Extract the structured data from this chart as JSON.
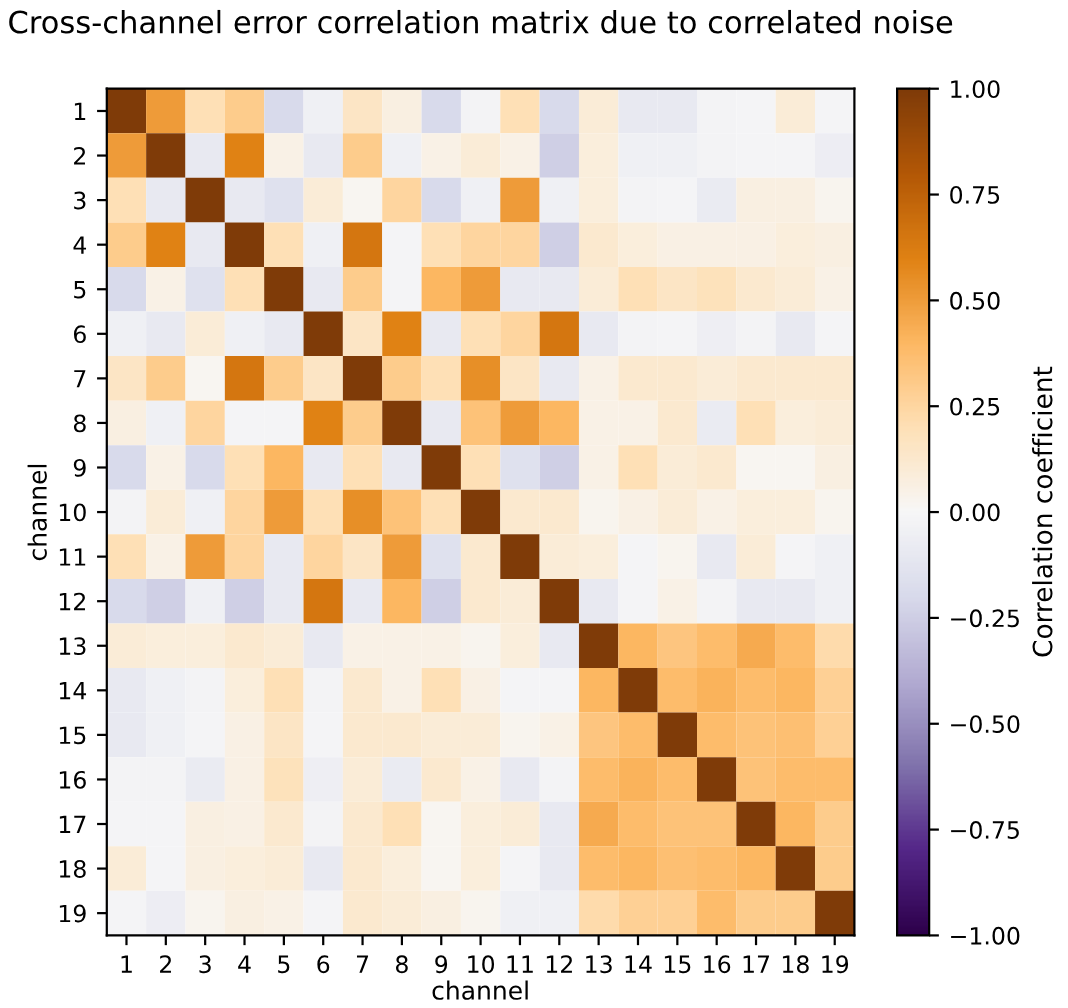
{
  "chart_data": {
    "type": "heatmap",
    "title": "Cross-channel error correlation matrix due to correlated noise",
    "xlabel": "channel",
    "ylabel": "channel",
    "clabel": "Correlation coefficient",
    "categories": [
      "1",
      "2",
      "3",
      "4",
      "5",
      "6",
      "7",
      "8",
      "9",
      "10",
      "11",
      "12",
      "13",
      "14",
      "15",
      "16",
      "17",
      "18",
      "19"
    ],
    "y_categories": [
      "1",
      "2",
      "3",
      "4",
      "5",
      "6",
      "7",
      "8",
      "9",
      "10",
      "11",
      "12",
      "13",
      "14",
      "15",
      "16",
      "17",
      "18",
      "19"
    ],
    "clim": [
      -1,
      1
    ],
    "cticks": [
      {
        "value": -1,
        "label": "−1.00"
      },
      {
        "value": -0.75,
        "label": "−0.75"
      },
      {
        "value": -0.5,
        "label": "−0.50"
      },
      {
        "value": -0.25,
        "label": "−0.25"
      },
      {
        "value": 0,
        "label": "0.00"
      },
      {
        "value": 0.25,
        "label": "0.25"
      },
      {
        "value": 0.5,
        "label": "0.50"
      },
      {
        "value": 0.75,
        "label": "0.75"
      },
      {
        "value": 1,
        "label": "1.00"
      }
    ],
    "cells": [
      [
        1,
        0.5,
        0.2,
        0.3,
        -0.2,
        -0.05,
        0.15,
        0.07,
        -0.2,
        -0.03,
        0.2,
        -0.2,
        0.1,
        -0.1,
        -0.1,
        -0.03,
        -0.02,
        0.1,
        -0.02
      ],
      [
        0.5,
        1,
        -0.1,
        0.6,
        0.05,
        -0.1,
        0.3,
        -0.05,
        0.05,
        0.1,
        0.05,
        -0.25,
        0.08,
        -0.05,
        -0.05,
        -0.03,
        -0.02,
        -0.02,
        -0.07
      ],
      [
        0.2,
        -0.1,
        1,
        -0.1,
        -0.15,
        0.1,
        0.02,
        0.25,
        -0.2,
        -0.05,
        0.5,
        -0.05,
        0.08,
        -0.03,
        -0.02,
        -0.08,
        0.07,
        0.07,
        0.03
      ],
      [
        0.3,
        0.6,
        -0.1,
        1,
        0.2,
        -0.05,
        0.65,
        -0.02,
        0.2,
        0.25,
        0.25,
        -0.25,
        0.12,
        0.08,
        0.06,
        0.06,
        0.06,
        0.08,
        0.07
      ],
      [
        -0.2,
        0.05,
        -0.15,
        0.2,
        1,
        -0.1,
        0.3,
        -0.02,
        0.4,
        0.5,
        -0.1,
        -0.1,
        0.1,
        0.2,
        0.15,
        0.18,
        0.12,
        0.1,
        0.05
      ],
      [
        -0.05,
        -0.1,
        0.1,
        -0.05,
        -0.1,
        1,
        0.15,
        0.6,
        -0.1,
        0.2,
        0.25,
        0.65,
        -0.1,
        -0.03,
        -0.02,
        -0.06,
        -0.03,
        -0.1,
        -0.02
      ],
      [
        0.15,
        0.3,
        0.02,
        0.65,
        0.3,
        0.15,
        1,
        0.3,
        0.2,
        0.55,
        0.15,
        -0.1,
        0.05,
        0.12,
        0.12,
        0.1,
        0.12,
        0.12,
        0.12
      ],
      [
        0.07,
        -0.05,
        0.25,
        -0.02,
        -0.02,
        0.6,
        0.3,
        1,
        -0.1,
        0.35,
        0.5,
        0.4,
        0.05,
        0.05,
        0.12,
        -0.08,
        0.2,
        0.08,
        0.1
      ],
      [
        -0.2,
        0.05,
        -0.2,
        0.2,
        0.4,
        -0.1,
        0.2,
        -0.1,
        1,
        0.2,
        -0.15,
        -0.25,
        0.05,
        0.2,
        0.1,
        0.12,
        0.02,
        0.02,
        0.07
      ],
      [
        -0.03,
        0.1,
        -0.05,
        0.25,
        0.5,
        0.2,
        0.55,
        0.35,
        0.2,
        1,
        0.12,
        0.12,
        0.03,
        0.06,
        0.1,
        0.05,
        0.08,
        0.08,
        0.03
      ],
      [
        0.2,
        0.05,
        0.5,
        0.25,
        -0.1,
        0.25,
        0.15,
        0.5,
        -0.15,
        0.12,
        1,
        0.1,
        0.08,
        -0.02,
        0.03,
        -0.1,
        0.1,
        -0.02,
        -0.05
      ],
      [
        -0.2,
        -0.25,
        -0.05,
        -0.25,
        -0.1,
        0.65,
        -0.1,
        0.4,
        -0.25,
        0.12,
        0.1,
        1,
        -0.1,
        -0.02,
        0.05,
        -0.03,
        -0.1,
        -0.1,
        -0.05
      ],
      [
        0.1,
        0.08,
        0.08,
        0.12,
        0.1,
        -0.1,
        0.05,
        0.05,
        0.05,
        0.03,
        0.08,
        -0.1,
        1,
        0.4,
        0.33,
        0.38,
        0.45,
        0.38,
        0.22
      ],
      [
        -0.1,
        -0.05,
        -0.03,
        0.08,
        0.2,
        -0.03,
        0.12,
        0.05,
        0.2,
        0.06,
        -0.02,
        -0.02,
        0.4,
        1,
        0.38,
        0.42,
        0.38,
        0.4,
        0.28
      ],
      [
        -0.1,
        -0.05,
        -0.02,
        0.06,
        0.15,
        -0.02,
        0.12,
        0.12,
        0.1,
        0.1,
        0.03,
        0.05,
        0.33,
        0.38,
        1,
        0.38,
        0.35,
        0.36,
        0.28
      ],
      [
        -0.03,
        -0.03,
        -0.08,
        0.06,
        0.18,
        -0.06,
        0.1,
        -0.08,
        0.12,
        0.05,
        -0.1,
        -0.03,
        0.38,
        0.42,
        0.38,
        1,
        0.35,
        0.38,
        0.38
      ],
      [
        -0.02,
        -0.02,
        0.07,
        0.06,
        0.12,
        -0.03,
        0.12,
        0.2,
        0.02,
        0.08,
        0.1,
        -0.1,
        0.45,
        0.38,
        0.35,
        0.35,
        1,
        0.4,
        0.3
      ],
      [
        0.1,
        -0.02,
        0.07,
        0.08,
        0.1,
        -0.1,
        0.12,
        0.08,
        0.02,
        0.08,
        -0.02,
        -0.1,
        0.38,
        0.4,
        0.36,
        0.38,
        0.4,
        1,
        0.3
      ],
      [
        -0.02,
        -0.07,
        0.03,
        0.07,
        0.05,
        -0.02,
        0.12,
        0.1,
        0.07,
        0.03,
        -0.05,
        -0.05,
        0.22,
        0.28,
        0.28,
        0.38,
        0.3,
        0.3,
        1
      ]
    ]
  }
}
